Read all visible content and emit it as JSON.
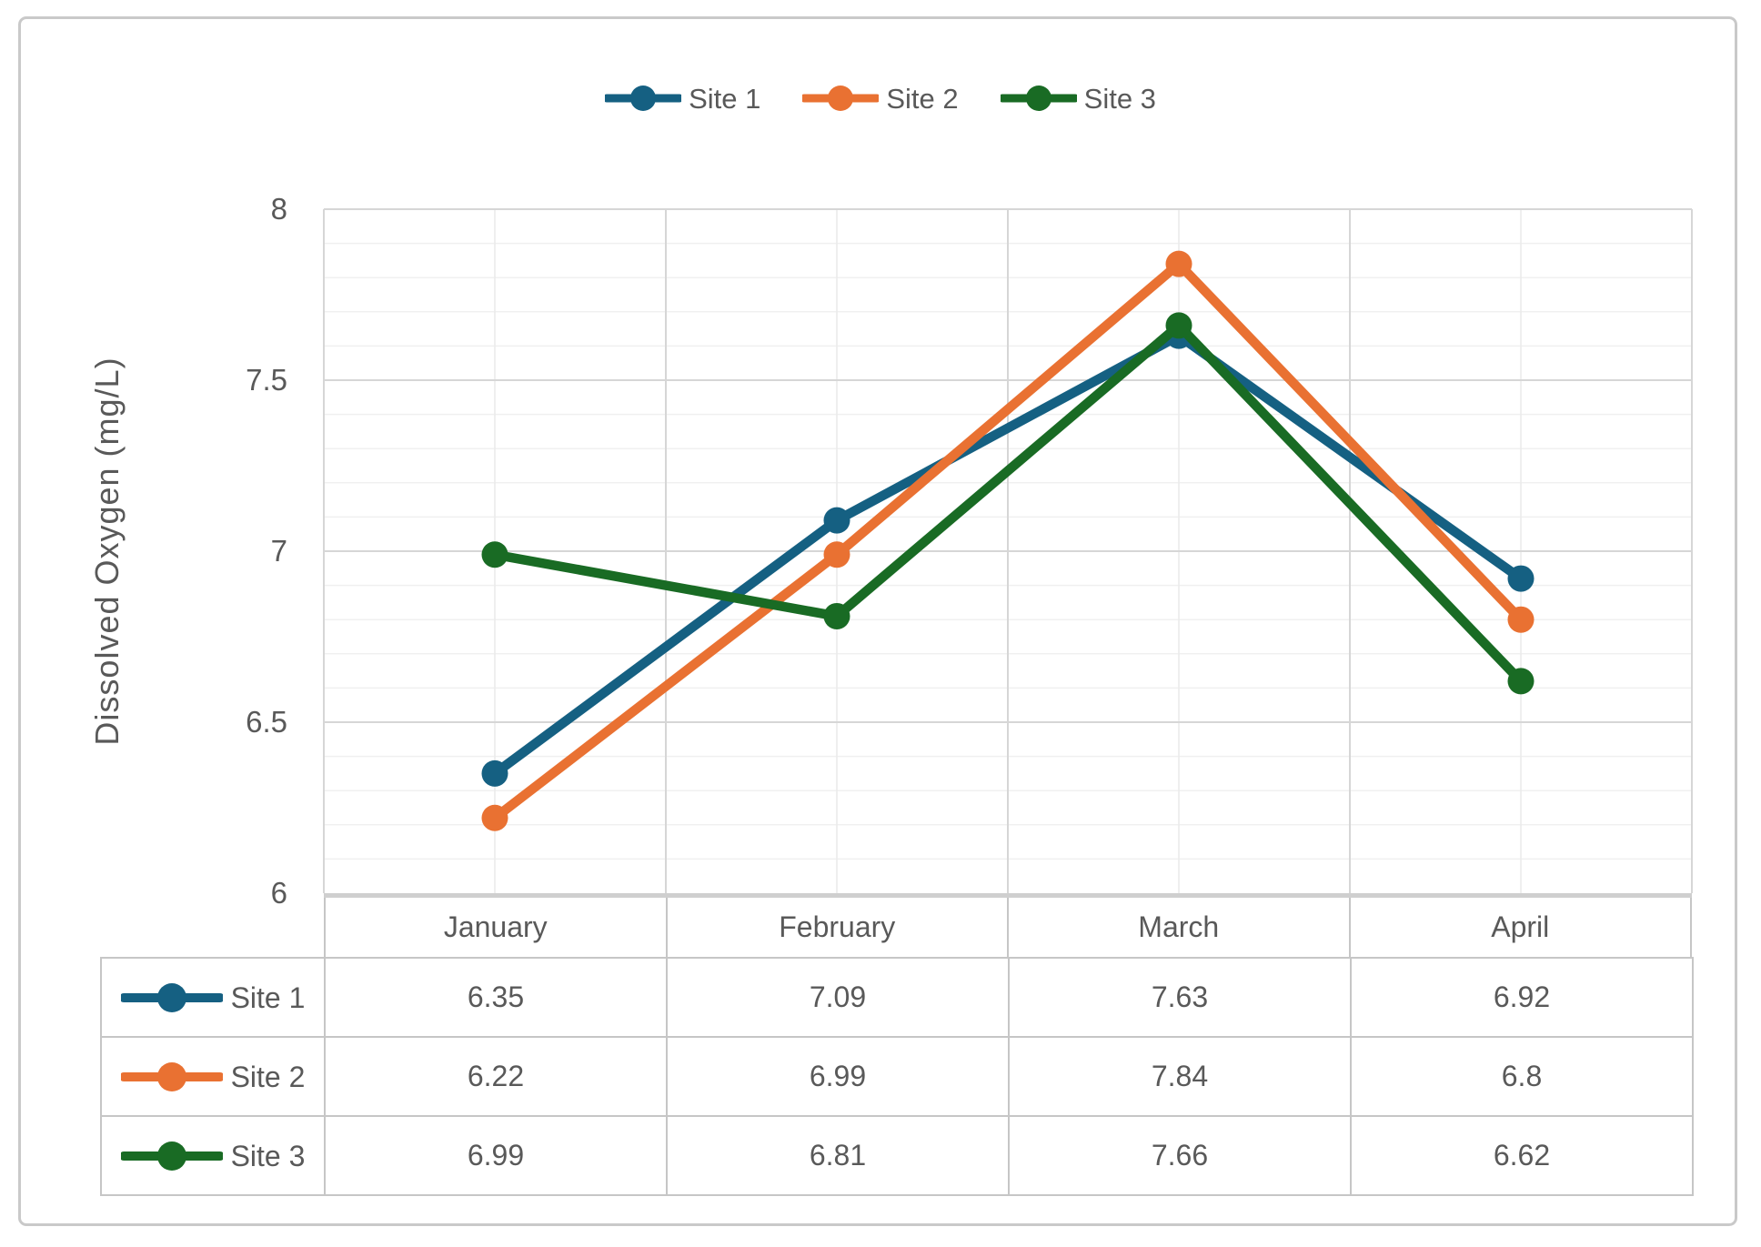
{
  "chart_data": {
    "type": "line",
    "categories": [
      "January",
      "February",
      "March",
      "April"
    ],
    "series": [
      {
        "name": "Site 1",
        "color": "#156082",
        "values": [
          6.35,
          7.09,
          7.63,
          6.92
        ]
      },
      {
        "name": "Site 2",
        "color": "#E97132",
        "values": [
          6.22,
          6.99,
          7.84,
          6.8
        ]
      },
      {
        "name": "Site 3",
        "color": "#196B24",
        "values": [
          6.99,
          6.81,
          7.66,
          6.62
        ]
      }
    ],
    "title": "",
    "xlabel": "",
    "ylabel": "Dissolved Oxygen (mg/L)",
    "ylim": [
      6,
      8
    ],
    "y_major_tick": 0.5,
    "y_minor_tick": 0.1,
    "y_tick_labels": [
      "8",
      "7.5",
      "7",
      "6.5",
      "6"
    ],
    "legend_position": "top",
    "grid": true,
    "data_table_shown": true,
    "marker": "circle"
  },
  "colors": {
    "text": "#595959",
    "frame_border": "#c9c9c9",
    "table_border": "#c6c6c6",
    "grid_major": "#d6d6d6",
    "grid_minor": "#f0f0f0",
    "grid_center_vertical": "#eaeaea",
    "axis_line": "#cfcfcf"
  }
}
